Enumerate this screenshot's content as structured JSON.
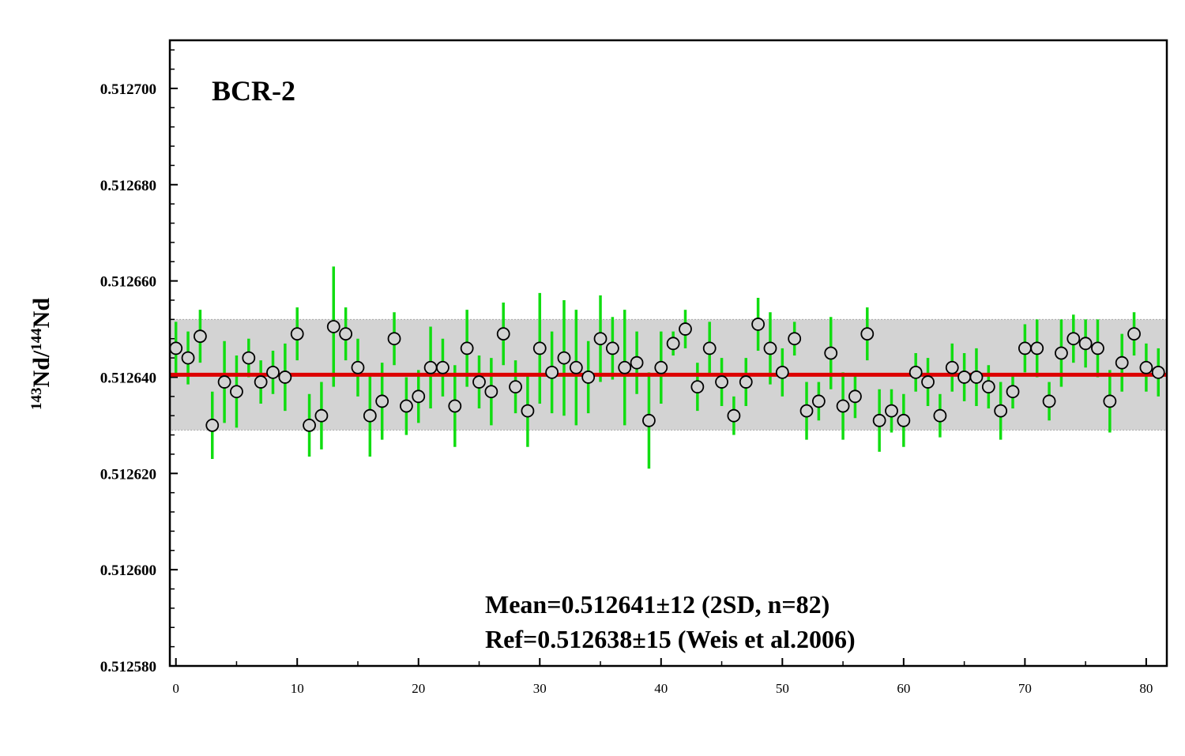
{
  "chart_data": {
    "type": "scatter",
    "title": "BCR-2",
    "ylabel": {
      "sup1": "143",
      "main1": "Nd/",
      "sup2": "144",
      "main2": "Nd"
    },
    "xlabel": "",
    "xlim": [
      -0.5,
      81.7
    ],
    "ylim": [
      0.51258,
      0.51271
    ],
    "y_ticks": [
      "0.512580",
      "0.512600",
      "0.512620",
      "0.512640",
      "0.512660",
      "0.512680",
      "0.512700"
    ],
    "x_ticks": [
      "0",
      "10",
      "20",
      "30",
      "40",
      "50",
      "60",
      "70",
      "80"
    ],
    "annotations": {
      "mean": "Mean=0.512641±12 (2SD, n=82)",
      "ref": "Ref=0.512638±15 (Weis et al.2006)"
    },
    "mean_line": 0.5126405,
    "band": [
      0.512629,
      0.512652
    ],
    "colors": {
      "error_bar": "#11dd11",
      "mean_line": "#dd0000",
      "band_fill": "#d3d3d3",
      "marker_fill": "#d3d3d3",
      "marker_edge": "#000000"
    },
    "series": [
      {
        "x": [
          0,
          1,
          2,
          3,
          4,
          5,
          6,
          7,
          8,
          9,
          10,
          11,
          12,
          13,
          14,
          15,
          16,
          17,
          18,
          19,
          20,
          21,
          22,
          23,
          24,
          25,
          26,
          27,
          28,
          29,
          30,
          31,
          32,
          33,
          34,
          35,
          36,
          37,
          38,
          39,
          40,
          41,
          42,
          43,
          44,
          45,
          46,
          47,
          48,
          49,
          50,
          51,
          52,
          53,
          54,
          55,
          56,
          57,
          58,
          59,
          60,
          61,
          62,
          63,
          64,
          65,
          66,
          67,
          68,
          69,
          70,
          71,
          72,
          73,
          74,
          75,
          76,
          77,
          78,
          79,
          80,
          81
        ],
        "y": [
          0.512646,
          0.512644,
          0.5126485,
          0.51263,
          0.512639,
          0.512637,
          0.512644,
          0.512639,
          0.512641,
          0.51264,
          0.512649,
          0.51263,
          0.512632,
          0.5126505,
          0.512649,
          0.512642,
          0.512632,
          0.512635,
          0.512648,
          0.512634,
          0.512636,
          0.512642,
          0.512642,
          0.512634,
          0.512646,
          0.512639,
          0.512637,
          0.512649,
          0.512638,
          0.512633,
          0.512646,
          0.512641,
          0.512644,
          0.512642,
          0.51264,
          0.512648,
          0.512646,
          0.512642,
          0.512643,
          0.512631,
          0.512642,
          0.512647,
          0.51265,
          0.512638,
          0.512646,
          0.512639,
          0.512632,
          0.512639,
          0.512651,
          0.512646,
          0.512641,
          0.512648,
          0.512633,
          0.512635,
          0.512645,
          0.512634,
          0.512636,
          0.512649,
          0.512631,
          0.512633,
          0.512631,
          0.512641,
          0.512639,
          0.512632,
          0.512642,
          0.51264,
          0.51264,
          0.512638,
          0.512633,
          0.512637,
          0.512646,
          0.512646,
          0.512635,
          0.512645,
          0.512648,
          0.512647,
          0.512646,
          0.512635,
          0.512643,
          0.512649,
          0.512642,
          0.512641
        ],
        "err": [
          5.5e-06,
          5.5e-06,
          5.5e-06,
          7e-06,
          8.5e-06,
          7.5e-06,
          4e-06,
          4.5e-06,
          4.5e-06,
          7e-06,
          5.5e-06,
          6.5e-06,
          7e-06,
          1.25e-05,
          5.5e-06,
          6e-06,
          8.5e-06,
          8e-06,
          5.5e-06,
          6e-06,
          5.5e-06,
          8.5e-06,
          6e-06,
          8.5e-06,
          8e-06,
          5.5e-06,
          7e-06,
          6.5e-06,
          5.5e-06,
          7.5e-06,
          1.15e-05,
          8.5e-06,
          1.2e-05,
          1.2e-05,
          7.5e-06,
          9e-06,
          6.5e-06,
          1.2e-05,
          6.5e-06,
          1e-05,
          7.5e-06,
          2.5e-06,
          4e-06,
          5e-06,
          5.5e-06,
          5e-06,
          4e-06,
          5e-06,
          5.5e-06,
          7.5e-06,
          5e-06,
          3.5e-06,
          6e-06,
          4e-06,
          7.5e-06,
          7e-06,
          4.5e-06,
          5.5e-06,
          6.5e-06,
          4.5e-06,
          5.5e-06,
          4e-06,
          5e-06,
          4.5e-06,
          5e-06,
          5e-06,
          6e-06,
          4.5e-06,
          6e-06,
          3.5e-06,
          5e-06,
          6e-06,
          4e-06,
          7e-06,
          5e-06,
          5e-06,
          6e-06,
          6.5e-06,
          6e-06,
          4.5e-06,
          5e-06,
          5e-06
        ]
      }
    ]
  }
}
